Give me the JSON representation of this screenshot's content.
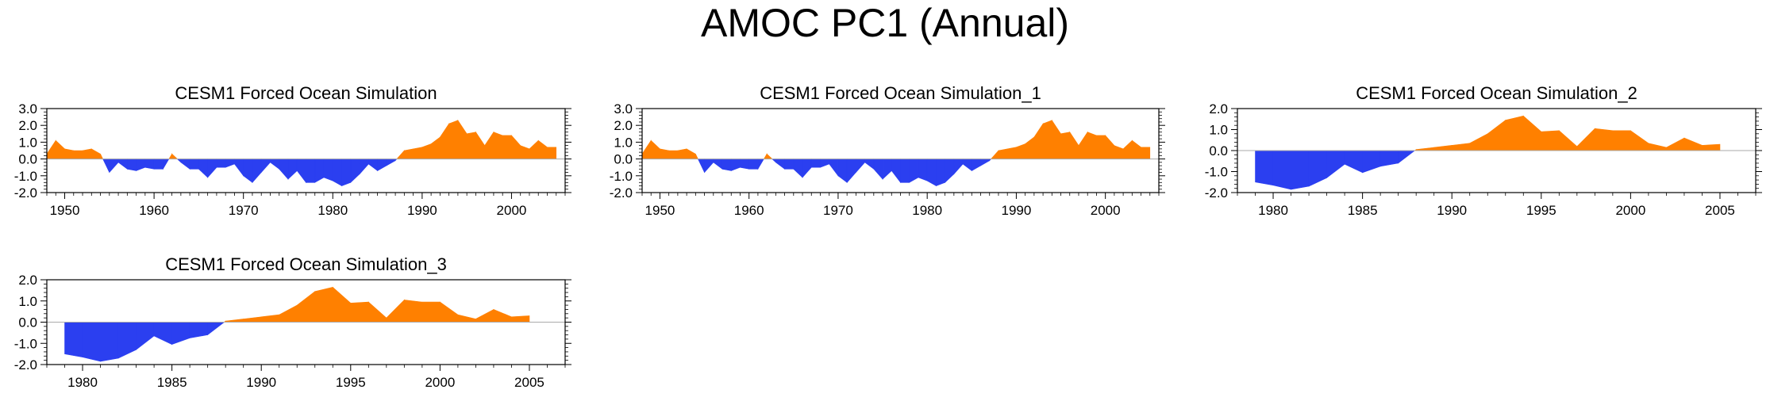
{
  "figure": {
    "title": "AMOC PC1 (Annual)"
  },
  "colors": {
    "positive": "#ff8000",
    "negative": "#2b3ff0",
    "axis": "#000000",
    "zero_line": "#aaaaaa"
  },
  "chart_data": [
    {
      "type": "area",
      "title": "CESM1 Forced Ocean Simulation",
      "xlim": [
        1948,
        2006
      ],
      "ylim": [
        -2.0,
        3.0
      ],
      "yticks": [
        -2.0,
        -1.0,
        0.0,
        1.0,
        2.0,
        3.0
      ],
      "ytick_labels": [
        "-2.0",
        "-1.0",
        "0.0",
        "1.0",
        "2.0",
        "3.0"
      ],
      "xticks": [
        1950,
        1960,
        1970,
        1980,
        1990,
        2000
      ],
      "xtick_labels": [
        "1950",
        "1960",
        "1970",
        "1980",
        "1990",
        "2000"
      ],
      "x": [
        1948,
        1949,
        1950,
        1951,
        1952,
        1953,
        1954,
        1955,
        1956,
        1957,
        1958,
        1959,
        1960,
        1961,
        1962,
        1963,
        1964,
        1965,
        1966,
        1967,
        1968,
        1969,
        1970,
        1971,
        1972,
        1973,
        1974,
        1975,
        1976,
        1977,
        1978,
        1979,
        1980,
        1981,
        1982,
        1983,
        1984,
        1985,
        1986,
        1987,
        1988,
        1989,
        1990,
        1991,
        1992,
        1993,
        1994,
        1995,
        1996,
        1997,
        1998,
        1999,
        2000,
        2001,
        2002,
        2003,
        2004,
        2005
      ],
      "y": [
        0.3,
        1.1,
        0.6,
        0.5,
        0.5,
        0.6,
        0.3,
        -0.8,
        -0.2,
        -0.6,
        -0.7,
        -0.5,
        -0.6,
        -0.6,
        0.3,
        -0.2,
        -0.6,
        -0.6,
        -1.1,
        -0.5,
        -0.5,
        -0.3,
        -1.0,
        -1.4,
        -0.8,
        -0.2,
        -0.6,
        -1.2,
        -0.7,
        -1.4,
        -1.4,
        -1.1,
        -1.3,
        -1.6,
        -1.4,
        -0.9,
        -0.3,
        -0.7,
        -0.4,
        -0.1,
        0.5,
        0.6,
        0.7,
        0.9,
        1.3,
        2.1,
        2.3,
        1.5,
        1.6,
        0.8,
        1.6,
        1.4,
        1.4,
        0.8,
        0.6,
        1.1,
        0.7,
        0.7
      ]
    },
    {
      "type": "area",
      "title": "CESM1 Forced Ocean Simulation_1",
      "xlim": [
        1948,
        2006
      ],
      "ylim": [
        -2.0,
        3.0
      ],
      "yticks": [
        -2.0,
        -1.0,
        0.0,
        1.0,
        2.0,
        3.0
      ],
      "ytick_labels": [
        "-2.0",
        "-1.0",
        "0.0",
        "1.0",
        "2.0",
        "3.0"
      ],
      "xticks": [
        1950,
        1960,
        1970,
        1980,
        1990,
        2000
      ],
      "xtick_labels": [
        "1950",
        "1960",
        "1970",
        "1980",
        "1990",
        "2000"
      ],
      "x": [
        1948,
        1949,
        1950,
        1951,
        1952,
        1953,
        1954,
        1955,
        1956,
        1957,
        1958,
        1959,
        1960,
        1961,
        1962,
        1963,
        1964,
        1965,
        1966,
        1967,
        1968,
        1969,
        1970,
        1971,
        1972,
        1973,
        1974,
        1975,
        1976,
        1977,
        1978,
        1979,
        1980,
        1981,
        1982,
        1983,
        1984,
        1985,
        1986,
        1987,
        1988,
        1989,
        1990,
        1991,
        1992,
        1993,
        1994,
        1995,
        1996,
        1997,
        1998,
        1999,
        2000,
        2001,
        2002,
        2003,
        2004,
        2005
      ],
      "y": [
        0.3,
        1.1,
        0.6,
        0.5,
        0.5,
        0.6,
        0.3,
        -0.8,
        -0.2,
        -0.6,
        -0.7,
        -0.5,
        -0.6,
        -0.6,
        0.3,
        -0.2,
        -0.6,
        -0.6,
        -1.1,
        -0.5,
        -0.5,
        -0.3,
        -1.0,
        -1.4,
        -0.8,
        -0.2,
        -0.6,
        -1.2,
        -0.7,
        -1.4,
        -1.4,
        -1.1,
        -1.3,
        -1.6,
        -1.4,
        -0.9,
        -0.3,
        -0.7,
        -0.4,
        -0.1,
        0.5,
        0.6,
        0.7,
        0.9,
        1.3,
        2.1,
        2.3,
        1.5,
        1.6,
        0.8,
        1.6,
        1.4,
        1.4,
        0.8,
        0.6,
        1.1,
        0.7,
        0.7
      ]
    },
    {
      "type": "area",
      "title": "CESM1 Forced Ocean Simulation_2",
      "xlim": [
        1978,
        2007
      ],
      "ylim": [
        -2.0,
        2.0
      ],
      "yticks": [
        -2.0,
        -1.0,
        0.0,
        1.0,
        2.0
      ],
      "ytick_labels": [
        "-2.0",
        "-1.0",
        "0.0",
        "1.0",
        "2.0"
      ],
      "xticks": [
        1980,
        1985,
        1990,
        1995,
        2000,
        2005
      ],
      "xtick_labels": [
        "1980",
        "1985",
        "1990",
        "1995",
        "2000",
        "2005"
      ],
      "x": [
        1979,
        1980,
        1981,
        1982,
        1983,
        1984,
        1985,
        1986,
        1987,
        1988,
        1989,
        1990,
        1991,
        1992,
        1993,
        1994,
        1995,
        1996,
        1997,
        1998,
        1999,
        2000,
        2001,
        2002,
        2003,
        2004,
        2005
      ],
      "y": [
        -1.5,
        -1.65,
        -1.85,
        -1.7,
        -1.3,
        -0.65,
        -1.05,
        -0.75,
        -0.6,
        0.05,
        0.15,
        0.25,
        0.35,
        0.8,
        1.45,
        1.65,
        0.9,
        0.95,
        0.2,
        1.05,
        0.95,
        0.95,
        0.35,
        0.15,
        0.6,
        0.25,
        0.3
      ]
    },
    {
      "type": "area",
      "title": "CESM1 Forced Ocean Simulation_3",
      "xlim": [
        1978,
        2007
      ],
      "ylim": [
        -2.0,
        2.0
      ],
      "yticks": [
        -2.0,
        -1.0,
        0.0,
        1.0,
        2.0
      ],
      "ytick_labels": [
        "-2.0",
        "-1.0",
        "0.0",
        "1.0",
        "2.0"
      ],
      "xticks": [
        1980,
        1985,
        1990,
        1995,
        2000,
        2005
      ],
      "xtick_labels": [
        "1980",
        "1985",
        "1990",
        "1995",
        "2000",
        "2005"
      ],
      "x": [
        1979,
        1980,
        1981,
        1982,
        1983,
        1984,
        1985,
        1986,
        1987,
        1988,
        1989,
        1990,
        1991,
        1992,
        1993,
        1994,
        1995,
        1996,
        1997,
        1998,
        1999,
        2000,
        2001,
        2002,
        2003,
        2004,
        2005
      ],
      "y": [
        -1.5,
        -1.65,
        -1.85,
        -1.7,
        -1.3,
        -0.65,
        -1.05,
        -0.75,
        -0.6,
        0.05,
        0.15,
        0.25,
        0.35,
        0.8,
        1.45,
        1.65,
        0.9,
        0.95,
        0.2,
        1.05,
        0.95,
        0.95,
        0.35,
        0.15,
        0.6,
        0.25,
        0.3
      ]
    }
  ]
}
